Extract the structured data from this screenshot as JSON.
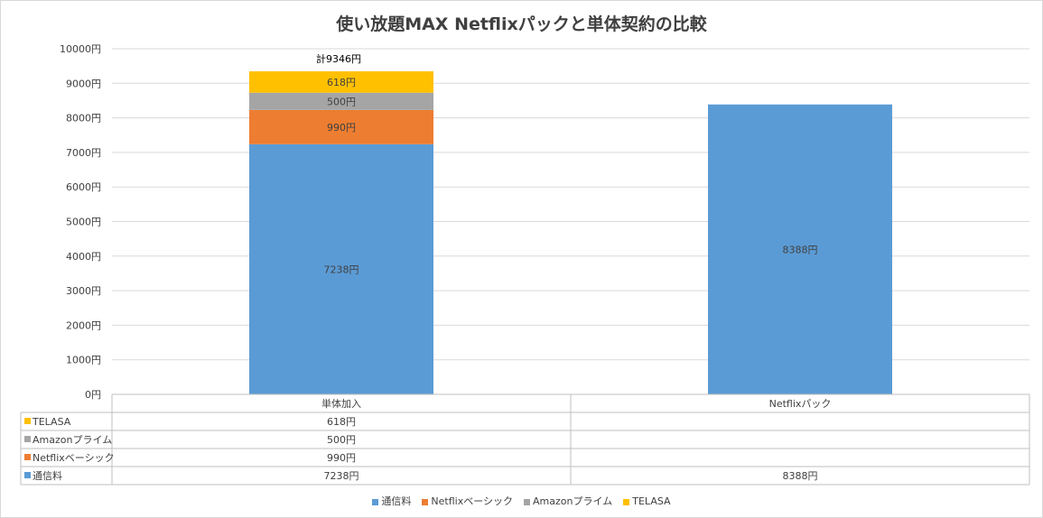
{
  "chart_data": {
    "type": "bar",
    "stacked": true,
    "title": "使い放題MAX Netflixパックと単体契約の比較",
    "categories": [
      "単体加入",
      "Netflixパック"
    ],
    "series": [
      {
        "name": "通信料",
        "color": "#5b9bd5",
        "values": [
          7238,
          8388
        ],
        "labels": [
          "7238円",
          "8388円"
        ]
      },
      {
        "name": "Netflixベーシック",
        "color": "#ed7d31",
        "values": [
          990,
          null
        ],
        "labels": [
          "990円",
          ""
        ]
      },
      {
        "name": "Amazonプライム",
        "color": "#a5a5a5",
        "values": [
          500,
          null
        ],
        "labels": [
          "500円",
          ""
        ]
      },
      {
        "name": "TELASA",
        "color": "#ffc000",
        "values": [
          618,
          null
        ],
        "labels": [
          "618円",
          ""
        ]
      }
    ],
    "ylim": [
      0,
      10000
    ],
    "yticks": [
      "0円",
      "1000円",
      "2000円",
      "3000円",
      "4000円",
      "5000円",
      "6000円",
      "7000円",
      "8000円",
      "9000円",
      "10000円"
    ],
    "annotations": [
      {
        "category": "単体加入",
        "text": "計9346円"
      }
    ],
    "grid": true,
    "legend": "bottom",
    "data_table": true
  }
}
